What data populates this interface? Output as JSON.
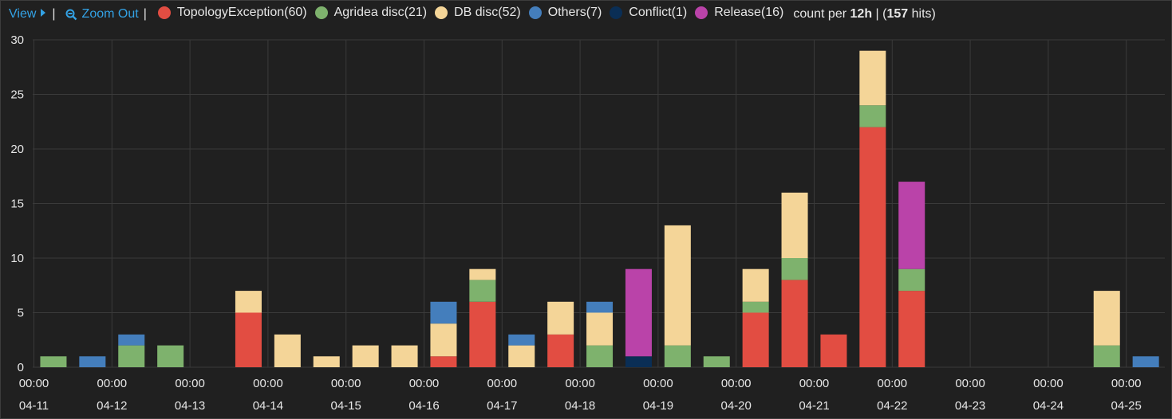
{
  "legend": {
    "view_label": "View",
    "zoom_out_label": "Zoom Out",
    "separator": "|",
    "count_prefix": "count per",
    "interval": "12h",
    "hits_sep": "| (",
    "hits": "157",
    "hits_suffix": "hits)"
  },
  "chart_data": {
    "type": "bar",
    "stacked": true,
    "ylim": [
      0,
      30
    ],
    "yticks": [
      0,
      5,
      10,
      15,
      20,
      25,
      30
    ],
    "grid": true,
    "x_labels": [
      {
        "time": "00:00",
        "date": "04-11"
      },
      {
        "time": "00:00",
        "date": "04-12"
      },
      {
        "time": "00:00",
        "date": "04-13"
      },
      {
        "time": "00:00",
        "date": "04-14"
      },
      {
        "time": "00:00",
        "date": "04-15"
      },
      {
        "time": "00:00",
        "date": "04-16"
      },
      {
        "time": "00:00",
        "date": "04-17"
      },
      {
        "time": "00:00",
        "date": "04-18"
      },
      {
        "time": "00:00",
        "date": "04-19"
      },
      {
        "time": "00:00",
        "date": "04-20"
      },
      {
        "time": "00:00",
        "date": "04-21"
      },
      {
        "time": "00:00",
        "date": "04-22"
      },
      {
        "time": "00:00",
        "date": "04-23"
      },
      {
        "time": "00:00",
        "date": "04-24"
      },
      {
        "time": "00:00",
        "date": "04-25"
      }
    ],
    "categories": [
      "04-11 00:00",
      "04-11 12:00",
      "04-12 00:00",
      "04-12 12:00",
      "04-13 00:00",
      "04-13 12:00",
      "04-14 00:00",
      "04-14 12:00",
      "04-15 00:00",
      "04-15 12:00",
      "04-16 00:00",
      "04-16 12:00",
      "04-17 00:00",
      "04-17 12:00",
      "04-18 00:00",
      "04-18 12:00",
      "04-19 00:00",
      "04-19 12:00",
      "04-20 00:00",
      "04-20 12:00",
      "04-21 00:00",
      "04-21 12:00",
      "04-22 00:00",
      "04-22 12:00",
      "04-23 00:00",
      "04-23 12:00",
      "04-24 00:00",
      "04-24 12:00",
      "04-25 00:00",
      "04-25 12:00"
    ],
    "series": [
      {
        "name": "TopologyException",
        "count": 60,
        "color": "#e24d42",
        "values": [
          0,
          0,
          0,
          0,
          0,
          5,
          0,
          0,
          0,
          0,
          1,
          6,
          0,
          3,
          0,
          0,
          0,
          0,
          5,
          8,
          3,
          22,
          7,
          0,
          0,
          0,
          0,
          0,
          0,
          0
        ]
      },
      {
        "name": "Agridea disc",
        "count": 21,
        "color": "#7eb26d",
        "values": [
          1,
          0,
          2,
          2,
          0,
          0,
          0,
          0,
          0,
          0,
          0,
          2,
          0,
          0,
          2,
          0,
          2,
          1,
          1,
          2,
          0,
          2,
          2,
          0,
          0,
          0,
          0,
          2,
          0,
          0
        ]
      },
      {
        "name": "DB disc",
        "count": 52,
        "color": "#f4d598",
        "values": [
          0,
          0,
          0,
          0,
          0,
          2,
          3,
          1,
          2,
          2,
          3,
          1,
          2,
          3,
          3,
          0,
          11,
          0,
          3,
          6,
          0,
          5,
          0,
          0,
          0,
          0,
          0,
          5,
          0,
          0
        ]
      },
      {
        "name": "Others",
        "count": 7,
        "color": "#447ebc",
        "values": [
          0,
          1,
          1,
          0,
          0,
          0,
          0,
          0,
          0,
          0,
          2,
          0,
          1,
          0,
          1,
          0,
          0,
          0,
          0,
          0,
          0,
          0,
          0,
          0,
          0,
          0,
          0,
          0,
          1,
          0
        ]
      },
      {
        "name": "Conflict",
        "count": 1,
        "color": "#0a2e55",
        "values": [
          0,
          0,
          0,
          0,
          0,
          0,
          0,
          0,
          0,
          0,
          0,
          0,
          0,
          0,
          0,
          1,
          0,
          0,
          0,
          0,
          0,
          0,
          0,
          0,
          0,
          0,
          0,
          0,
          0,
          0
        ]
      },
      {
        "name": "Release",
        "count": 16,
        "color": "#ba43a9",
        "values": [
          0,
          0,
          0,
          0,
          0,
          0,
          0,
          0,
          0,
          0,
          0,
          0,
          0,
          0,
          0,
          8,
          0,
          0,
          0,
          0,
          0,
          0,
          8,
          0,
          0,
          0,
          0,
          0,
          0,
          0
        ]
      }
    ]
  }
}
